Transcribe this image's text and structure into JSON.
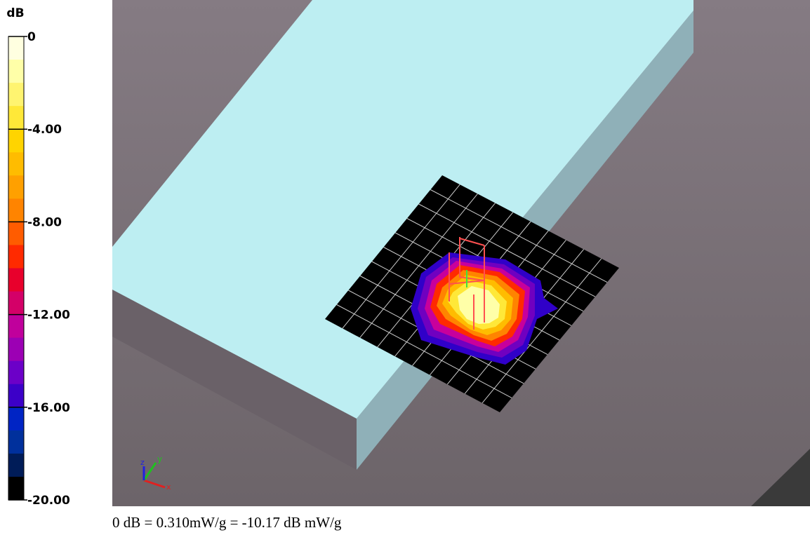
{
  "colorbar": {
    "unit": "dB",
    "lim": [
      -20,
      0
    ],
    "ticks": [
      0,
      {
        "value": -4,
        "label": "-4.00"
      },
      {
        "value": -8,
        "label": "-8.00"
      },
      {
        "value": -12,
        "label": "-12.00"
      },
      {
        "value": -16,
        "label": "-16.00"
      },
      {
        "value": -20,
        "label": "-20.00"
      }
    ],
    "colors": [
      "#ffffe0",
      "#ffffa8",
      "#fff470",
      "#ffe838",
      "#ffd400",
      "#ffbc00",
      "#ffa000",
      "#ff8400",
      "#ff5c00",
      "#ff2a00",
      "#e8002c",
      "#d40068",
      "#c0009c",
      "#9c00b4",
      "#6c00c8",
      "#3c00c8",
      "#0024c4",
      "#00309c",
      "#001c58",
      "#000000"
    ]
  },
  "axes_triad": {
    "x": "x",
    "y": "y",
    "z": "z"
  },
  "footer": "0 dB = 0.310mW/g = -10.17 dB mW/g"
}
